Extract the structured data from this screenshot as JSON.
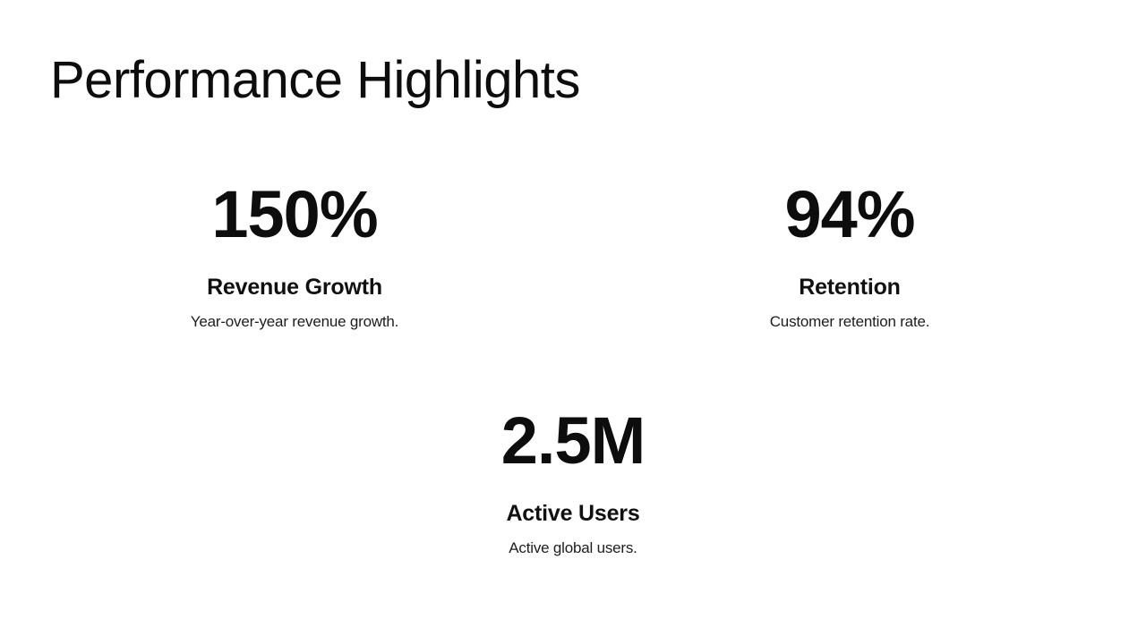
{
  "slide": {
    "title": "Performance Highlights",
    "stats": [
      {
        "value": "150%",
        "label": "Revenue Growth",
        "description": "Year-over-year revenue growth."
      },
      {
        "value": "94%",
        "label": "Retention",
        "description": "Customer retention rate."
      },
      {
        "value": "2.5M",
        "label": "Active Users",
        "description": "Active global users."
      }
    ],
    "colors": {
      "background": "#ffffff",
      "text": "#0d0d0d"
    }
  }
}
